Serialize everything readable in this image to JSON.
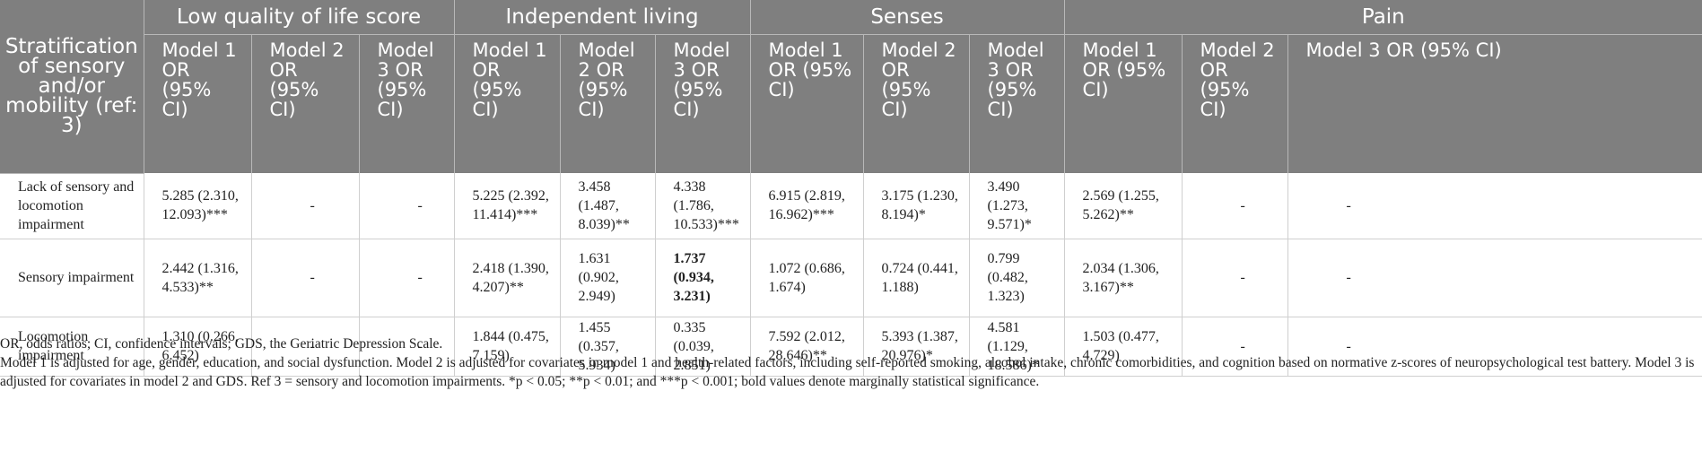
{
  "header": {
    "stratification": "Stratification of sensory and/or mobility (ref: 3)",
    "groups": [
      "Low quality of life score",
      "Independent living",
      "Senses",
      "Pain"
    ],
    "model_labels": [
      "Model 1 OR (95% CI)",
      "Model 2 OR (95% CI)",
      "Model 3 OR (95% CI)"
    ]
  },
  "rows": [
    {
      "label": "Lack of sensory and locomotion impairment",
      "cells": [
        "5.285 (2.310, 12.093)***",
        "-",
        "-",
        "5.225 (2.392, 11.414)***",
        "3.458 (1.487, 8.039)**",
        "4.338 (1.786, 10.533)***",
        "6.915 (2.819, 16.962)***",
        "3.175 (1.230, 8.194)*",
        "3.490 (1.273, 9.571)*",
        "2.569 (1.255, 5.262)**",
        "-",
        "-"
      ]
    },
    {
      "label": "Sensory impairment",
      "cells": [
        "2.442 (1.316, 4.533)**",
        "-",
        "-",
        "2.418 (1.390, 4.207)**",
        "1.631 (0.902, 2.949)",
        "1.737 (0.934, 3.231)",
        "1.072 (0.686, 1.674)",
        "0.724 (0.441, 1.188)",
        "0.799 (0.482, 1.323)",
        "2.034 (1.306, 3.167)**",
        "-",
        "-"
      ]
    },
    {
      "label": "Locomotion impairment",
      "cells": [
        "1.310 (0.266, 6.452)",
        "-",
        "-",
        "1.844 (0.475, 7.159)",
        "1.455 (0.357, 5.934)",
        "0.335 (0.039, 2.851)",
        "7.592 (2.012, 28.646)**",
        "5.393 (1.387, 20.976)*",
        "4.581 (1.129, 18.586)*",
        "1.503 (0.477, 4.729)",
        "-",
        "-"
      ]
    }
  ],
  "notes": {
    "line1": "OR, odds ratios; CI, confidence intervals; GDS, the Geriatric Depression Scale.",
    "line2": "Model 1 is adjusted for age, gender, education, and social dysfunction. Model 2 is adjusted for covariates in model 1 and health-related factors, including self-reported smoking, alcohol intake, chronic comorbidities, and cognition based on normative z-scores of neuropsychological test battery. Model 3 is adjusted for covariates in model 2 and GDS. Ref 3 = sensory and locomotion impairments. *p < 0.05; **p < 0.01; and ***p < 0.001; bold values denote marginally statistical significance."
  }
}
